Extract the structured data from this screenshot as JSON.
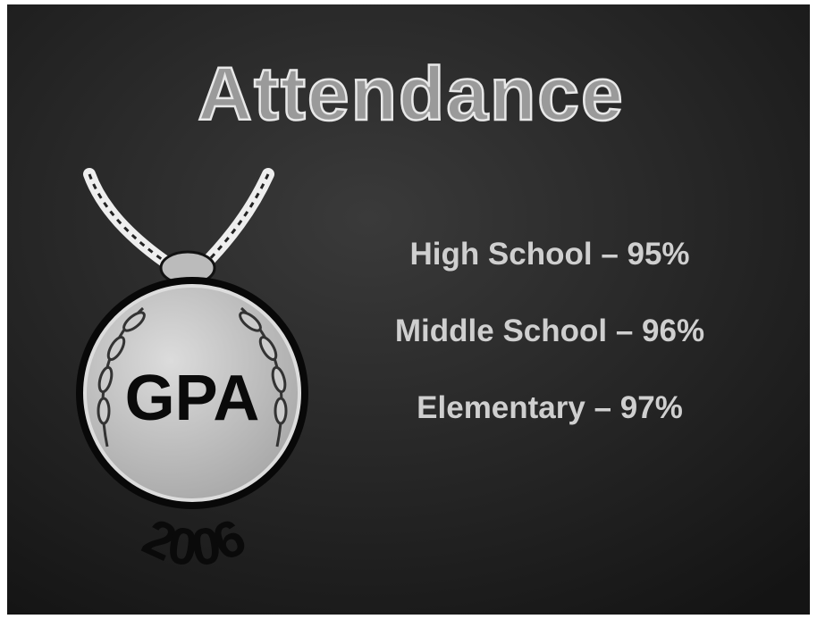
{
  "slide": {
    "title": "Attendance",
    "items": [
      "High School – 95%",
      "Middle School – 96%",
      "Elementary – 97%"
    ],
    "medal": {
      "label": "GPA",
      "year": "2006"
    }
  }
}
